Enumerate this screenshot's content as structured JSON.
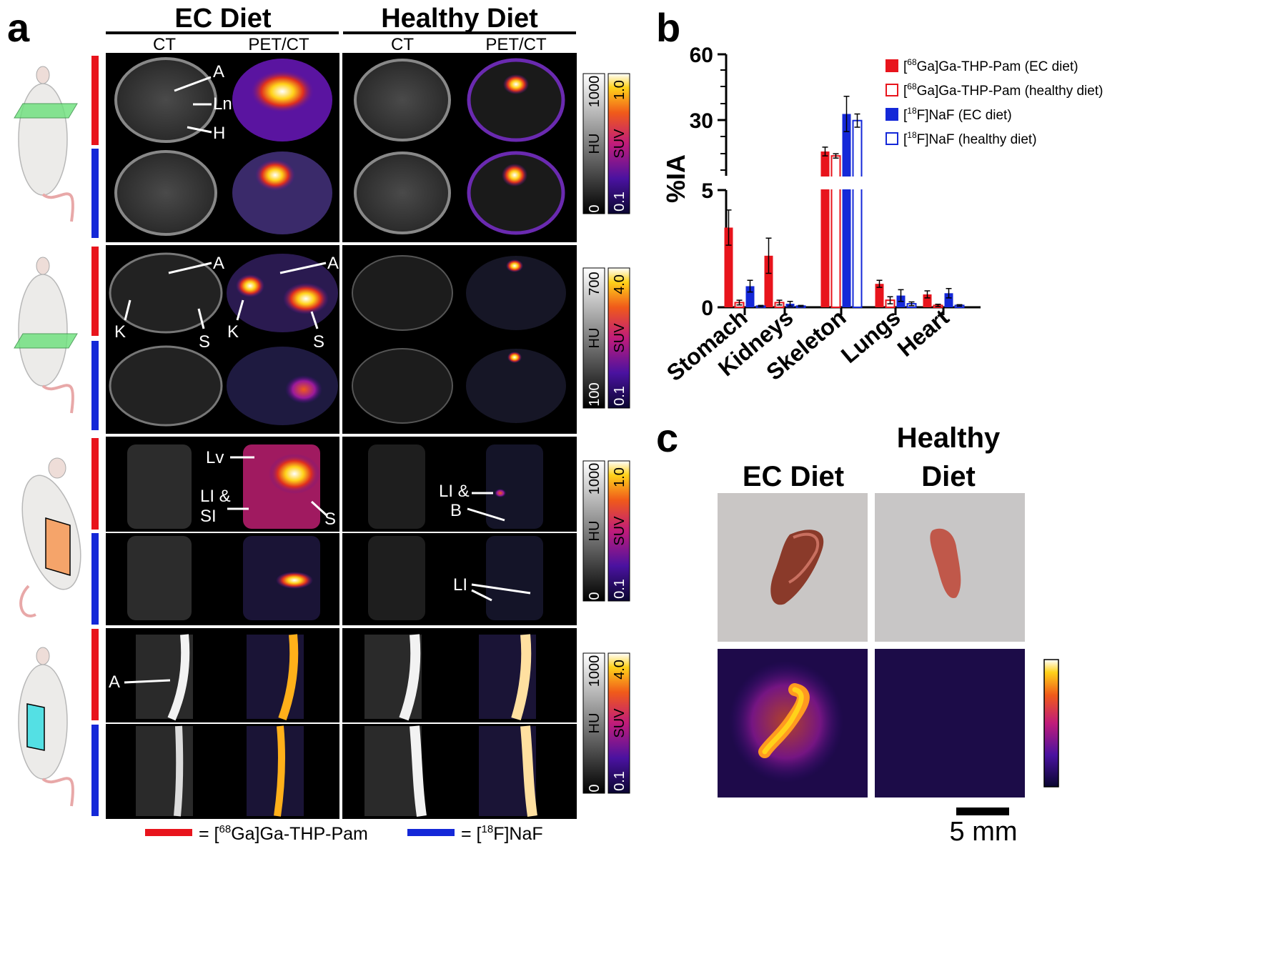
{
  "panel_a": {
    "letter": "a",
    "group_ec": "EC Diet",
    "group_healthy": "Healthy Diet",
    "col_ct": "CT",
    "col_petct": "PET/CT",
    "colorbar_hu_label": "HU",
    "colorbar_suv_label": "SUV",
    "rows": [
      {
        "hu_min": "0",
        "hu_max": "1000",
        "suv_min": "0.1",
        "suv_max": "1.0"
      },
      {
        "hu_min": "100",
        "hu_max": "700",
        "suv_min": "0.1",
        "suv_max": "4.0"
      },
      {
        "hu_min": "0",
        "hu_max": "1000",
        "suv_min": "0.1",
        "suv_max": "1.0"
      },
      {
        "hu_min": "0",
        "hu_max": "1000",
        "suv_min": "0.1",
        "suv_max": "4.0"
      }
    ],
    "annotations": {
      "A": "A",
      "Ln": "Ln",
      "H": "H",
      "K": "K",
      "S": "S",
      "Lv": "Lv",
      "LI_SI_line1": "LI &",
      "LI_SI_line2": "SI",
      "LI_B_line1": "LI &",
      "LI_B_line2": "B",
      "LI": "LI"
    },
    "legend": {
      "ga_prefix": "= [",
      "ga_sup": "68",
      "ga_suffix": "Ga]Ga-THP-Pam",
      "naf_prefix": "= [",
      "naf_sup": "18",
      "naf_suffix": "F]NaF"
    },
    "colors": {
      "ga": "#e8141c",
      "naf": "#1428d8"
    }
  },
  "panel_b": {
    "letter": "b",
    "ylabel": "%IA",
    "yticks_upper": [
      "60",
      "30"
    ],
    "ytick_lower_top": "5",
    "ytick_zero": "0",
    "categories": [
      "Stomach",
      "Kidneys",
      "Skeleton",
      "Lungs",
      "Heart"
    ],
    "legend": [
      {
        "pre": "[",
        "sup": "68",
        "post": "Ga]Ga-THP-Pam (EC diet)"
      },
      {
        "pre": "[",
        "sup": "68",
        "post": "Ga]Ga-THP-Pam (healthy diet)"
      },
      {
        "pre": "[",
        "sup": "18",
        "post": "F]NaF (EC diet)"
      },
      {
        "pre": "[",
        "sup": "18",
        "post": "F]NaF (healthy diet)"
      }
    ]
  },
  "chart_data": {
    "type": "bar",
    "title": "",
    "xlabel": "",
    "ylabel": "%IA",
    "categories": [
      "Stomach",
      "Kidneys",
      "Skeleton",
      "Lungs",
      "Heart"
    ],
    "y_axis": "broken: 0–5 lower segment, 5–60 upper segment",
    "series": [
      {
        "name": "[68Ga]Ga-THP-Pam (EC diet)",
        "color": "#e8141c",
        "fill": "solid",
        "values": [
          3.4,
          2.2,
          16.0,
          1.0,
          0.55
        ],
        "errors": [
          0.75,
          0.75,
          2.0,
          0.15,
          0.15
        ]
      },
      {
        "name": "[68Ga]Ga-THP-Pam (healthy diet)",
        "color": "#e8141c",
        "fill": "open",
        "values": [
          0.2,
          0.2,
          14.0,
          0.3,
          0.08
        ],
        "errors": [
          0.1,
          0.1,
          1.0,
          0.15,
          0.05
        ]
      },
      {
        "name": "[18F]NaF (EC diet)",
        "color": "#1428d8",
        "fill": "solid",
        "values": [
          0.9,
          0.15,
          33.0,
          0.5,
          0.6
        ],
        "errors": [
          0.25,
          0.1,
          8.0,
          0.25,
          0.2
        ]
      },
      {
        "name": "[18F]NaF (healthy diet)",
        "color": "#1428d8",
        "fill": "open",
        "values": [
          0.05,
          0.05,
          30.0,
          0.15,
          0.08
        ],
        "errors": [
          0.03,
          0.03,
          3.0,
          0.08,
          0.03
        ]
      }
    ]
  },
  "panel_c": {
    "letter": "c",
    "col_ec": "EC Diet",
    "col_healthy_line1": "Healthy",
    "col_healthy_line2": "Diet",
    "scalebar_label": "5 mm"
  }
}
